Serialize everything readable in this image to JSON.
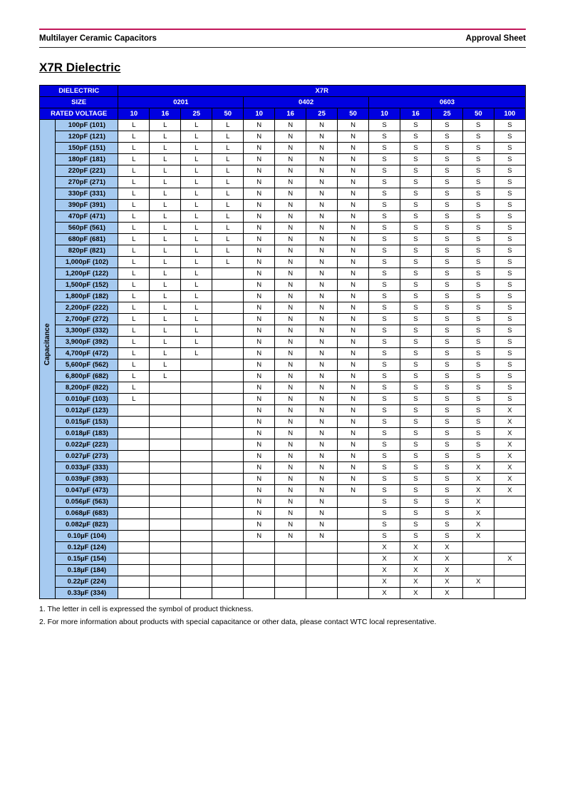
{
  "header": {
    "left": "Multilayer Ceramic Capacitors",
    "right": "Approval Sheet"
  },
  "section_title": "X7R Dielectric",
  "table": {
    "dielectric_label": "DIELECTRIC",
    "dielectric_value": "X7R",
    "size_label": "SIZE",
    "sizes": [
      "0201",
      "0402",
      "0603"
    ],
    "rated_voltage_label": "RATED VOLTAGE",
    "voltages_0201": [
      "10",
      "16",
      "25",
      "50"
    ],
    "voltages_0402": [
      "10",
      "16",
      "25",
      "50"
    ],
    "voltages_0603": [
      "10",
      "16",
      "25",
      "50",
      "100"
    ],
    "capacitance_label": "Capacitance",
    "rows": [
      {
        "label": "100pF (101)",
        "c": [
          "L",
          "L",
          "L",
          "L",
          "N",
          "N",
          "N",
          "N",
          "S",
          "S",
          "S",
          "S",
          "S"
        ]
      },
      {
        "label": "120pF (121)",
        "c": [
          "L",
          "L",
          "L",
          "L",
          "N",
          "N",
          "N",
          "N",
          "S",
          "S",
          "S",
          "S",
          "S"
        ]
      },
      {
        "label": "150pF (151)",
        "c": [
          "L",
          "L",
          "L",
          "L",
          "N",
          "N",
          "N",
          "N",
          "S",
          "S",
          "S",
          "S",
          "S"
        ]
      },
      {
        "label": "180pF (181)",
        "c": [
          "L",
          "L",
          "L",
          "L",
          "N",
          "N",
          "N",
          "N",
          "S",
          "S",
          "S",
          "S",
          "S"
        ]
      },
      {
        "label": "220pF (221)",
        "c": [
          "L",
          "L",
          "L",
          "L",
          "N",
          "N",
          "N",
          "N",
          "S",
          "S",
          "S",
          "S",
          "S"
        ]
      },
      {
        "label": "270pF (271)",
        "c": [
          "L",
          "L",
          "L",
          "L",
          "N",
          "N",
          "N",
          "N",
          "S",
          "S",
          "S",
          "S",
          "S"
        ]
      },
      {
        "label": "330pF (331)",
        "c": [
          "L",
          "L",
          "L",
          "L",
          "N",
          "N",
          "N",
          "N",
          "S",
          "S",
          "S",
          "S",
          "S"
        ]
      },
      {
        "label": "390pF (391)",
        "c": [
          "L",
          "L",
          "L",
          "L",
          "N",
          "N",
          "N",
          "N",
          "S",
          "S",
          "S",
          "S",
          "S"
        ]
      },
      {
        "label": "470pF (471)",
        "c": [
          "L",
          "L",
          "L",
          "L",
          "N",
          "N",
          "N",
          "N",
          "S",
          "S",
          "S",
          "S",
          "S"
        ]
      },
      {
        "label": "560pF (561)",
        "c": [
          "L",
          "L",
          "L",
          "L",
          "N",
          "N",
          "N",
          "N",
          "S",
          "S",
          "S",
          "S",
          "S"
        ]
      },
      {
        "label": "680pF (681)",
        "c": [
          "L",
          "L",
          "L",
          "L",
          "N",
          "N",
          "N",
          "N",
          "S",
          "S",
          "S",
          "S",
          "S"
        ]
      },
      {
        "label": "820pF (821)",
        "c": [
          "L",
          "L",
          "L",
          "L",
          "N",
          "N",
          "N",
          "N",
          "S",
          "S",
          "S",
          "S",
          "S"
        ]
      },
      {
        "label": "1,000pF (102)",
        "c": [
          "L",
          "L",
          "L",
          "L",
          "N",
          "N",
          "N",
          "N",
          "S",
          "S",
          "S",
          "S",
          "S"
        ]
      },
      {
        "label": "1,200pF (122)",
        "c": [
          "L",
          "L",
          "L",
          "",
          "N",
          "N",
          "N",
          "N",
          "S",
          "S",
          "S",
          "S",
          "S"
        ]
      },
      {
        "label": "1,500pF (152)",
        "c": [
          "L",
          "L",
          "L",
          "",
          "N",
          "N",
          "N",
          "N",
          "S",
          "S",
          "S",
          "S",
          "S"
        ]
      },
      {
        "label": "1,800pF (182)",
        "c": [
          "L",
          "L",
          "L",
          "",
          "N",
          "N",
          "N",
          "N",
          "S",
          "S",
          "S",
          "S",
          "S"
        ]
      },
      {
        "label": "2,200pF (222)",
        "c": [
          "L",
          "L",
          "L",
          "",
          "N",
          "N",
          "N",
          "N",
          "S",
          "S",
          "S",
          "S",
          "S"
        ]
      },
      {
        "label": "2,700pF (272)",
        "c": [
          "L",
          "L",
          "L",
          "",
          "N",
          "N",
          "N",
          "N",
          "S",
          "S",
          "S",
          "S",
          "S"
        ]
      },
      {
        "label": "3,300pF (332)",
        "c": [
          "L",
          "L",
          "L",
          "",
          "N",
          "N",
          "N",
          "N",
          "S",
          "S",
          "S",
          "S",
          "S"
        ]
      },
      {
        "label": "3,900pF (392)",
        "c": [
          "L",
          "L",
          "L",
          "",
          "N",
          "N",
          "N",
          "N",
          "S",
          "S",
          "S",
          "S",
          "S"
        ]
      },
      {
        "label": "4,700pF (472)",
        "c": [
          "L",
          "L",
          "L",
          "",
          "N",
          "N",
          "N",
          "N",
          "S",
          "S",
          "S",
          "S",
          "S"
        ]
      },
      {
        "label": "5,600pF (562)",
        "c": [
          "L",
          "L",
          "",
          "",
          "N",
          "N",
          "N",
          "N",
          "S",
          "S",
          "S",
          "S",
          "S"
        ]
      },
      {
        "label": "6,800pF (682)",
        "c": [
          "L",
          "L",
          "",
          "",
          "N",
          "N",
          "N",
          "N",
          "S",
          "S",
          "S",
          "S",
          "S"
        ]
      },
      {
        "label": "8,200pF (822)",
        "c": [
          "L",
          "",
          "",
          "",
          "N",
          "N",
          "N",
          "N",
          "S",
          "S",
          "S",
          "S",
          "S"
        ]
      },
      {
        "label": "0.010µF (103)",
        "c": [
          "L",
          "",
          "",
          "",
          "N",
          "N",
          "N",
          "N",
          "S",
          "S",
          "S",
          "S",
          "S"
        ]
      },
      {
        "label": "0.012µF (123)",
        "c": [
          "",
          "",
          "",
          "",
          "N",
          "N",
          "N",
          "N",
          "S",
          "S",
          "S",
          "S",
          "X"
        ]
      },
      {
        "label": "0.015µF (153)",
        "c": [
          "",
          "",
          "",
          "",
          "N",
          "N",
          "N",
          "N",
          "S",
          "S",
          "S",
          "S",
          "X"
        ]
      },
      {
        "label": "0.018µF (183)",
        "c": [
          "",
          "",
          "",
          "",
          "N",
          "N",
          "N",
          "N",
          "S",
          "S",
          "S",
          "S",
          "X"
        ]
      },
      {
        "label": "0.022µF (223)",
        "c": [
          "",
          "",
          "",
          "",
          "N",
          "N",
          "N",
          "N",
          "S",
          "S",
          "S",
          "S",
          "X"
        ]
      },
      {
        "label": "0.027µF (273)",
        "c": [
          "",
          "",
          "",
          "",
          "N",
          "N",
          "N",
          "N",
          "S",
          "S",
          "S",
          "S",
          "X"
        ]
      },
      {
        "label": "0.033µF (333)",
        "c": [
          "",
          "",
          "",
          "",
          "N",
          "N",
          "N",
          "N",
          "S",
          "S",
          "S",
          "X",
          "X"
        ]
      },
      {
        "label": "0.039µF (393)",
        "c": [
          "",
          "",
          "",
          "",
          "N",
          "N",
          "N",
          "N",
          "S",
          "S",
          "S",
          "X",
          "X"
        ]
      },
      {
        "label": "0.047µF (473)",
        "c": [
          "",
          "",
          "",
          "",
          "N",
          "N",
          "N",
          "N",
          "S",
          "S",
          "S",
          "X",
          "X"
        ]
      },
      {
        "label": "0.056µF (563)",
        "c": [
          "",
          "",
          "",
          "",
          "N",
          "N",
          "N",
          "",
          "S",
          "S",
          "S",
          "X",
          ""
        ]
      },
      {
        "label": "0.068µF (683)",
        "c": [
          "",
          "",
          "",
          "",
          "N",
          "N",
          "N",
          "",
          "S",
          "S",
          "S",
          "X",
          ""
        ]
      },
      {
        "label": "0.082µF (823)",
        "c": [
          "",
          "",
          "",
          "",
          "N",
          "N",
          "N",
          "",
          "S",
          "S",
          "S",
          "X",
          ""
        ]
      },
      {
        "label": "0.10µF (104)",
        "c": [
          "",
          "",
          "",
          "",
          "N",
          "N",
          "N",
          "",
          "S",
          "S",
          "S",
          "X",
          ""
        ]
      },
      {
        "label": "0.12µF (124)",
        "c": [
          "",
          "",
          "",
          "",
          "",
          "",
          "",
          "",
          "X",
          "X",
          "X",
          "",
          ""
        ]
      },
      {
        "label": "0.15µF (154)",
        "c": [
          "",
          "",
          "",
          "",
          "",
          "",
          "",
          "",
          "X",
          "X",
          "X",
          "",
          "X"
        ]
      },
      {
        "label": "0.18µF (184)",
        "c": [
          "",
          "",
          "",
          "",
          "",
          "",
          "",
          "",
          "X",
          "X",
          "X",
          "",
          ""
        ]
      },
      {
        "label": "0.22µF (224)",
        "c": [
          "",
          "",
          "",
          "",
          "",
          "",
          "",
          "",
          "X",
          "X",
          "X",
          "X",
          ""
        ]
      },
      {
        "label": "0.33µF (334)",
        "c": [
          "",
          "",
          "",
          "",
          "",
          "",
          "",
          "",
          "X",
          "X",
          "X",
          "",
          ""
        ]
      }
    ]
  },
  "notes": [
    "1. The letter in cell is expressed the symbol of product thickness.",
    "2. For more information about products with special capacitance or other data, please contact WTC local representative."
  ],
  "colors": {
    "header_blue": "#0000e0",
    "light_blue": "#a6caf0",
    "rule_pink": "#c2185b"
  }
}
